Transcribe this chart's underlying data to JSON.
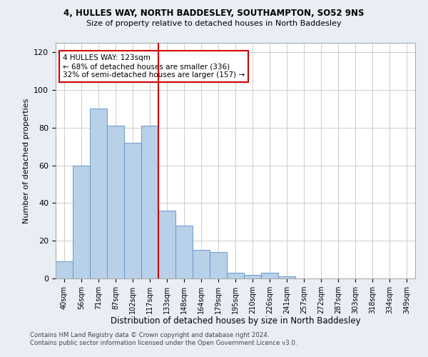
{
  "title1": "4, HULLES WAY, NORTH BADDESLEY, SOUTHAMPTON, SO52 9NS",
  "title2": "Size of property relative to detached houses in North Baddesley",
  "xlabel": "Distribution of detached houses by size in North Baddesley",
  "ylabel": "Number of detached properties",
  "categories": [
    "40sqm",
    "56sqm",
    "71sqm",
    "87sqm",
    "102sqm",
    "117sqm",
    "133sqm",
    "148sqm",
    "164sqm",
    "179sqm",
    "195sqm",
    "210sqm",
    "226sqm",
    "241sqm",
    "257sqm",
    "272sqm",
    "287sqm",
    "303sqm",
    "318sqm",
    "334sqm",
    "349sqm"
  ],
  "values": [
    9,
    60,
    90,
    81,
    72,
    81,
    36,
    28,
    15,
    14,
    3,
    2,
    3,
    1,
    0,
    0,
    0,
    0,
    0,
    0,
    0
  ],
  "bar_color": "#b8d0e8",
  "bar_edge_color": "#6699cc",
  "vline_x": 5.5,
  "vline_color": "#cc0000",
  "annotation_text": "4 HULLES WAY: 123sqm\n← 68% of detached houses are smaller (336)\n32% of semi-detached houses are larger (157) →",
  "annotation_box_color": "#ffffff",
  "annotation_box_edge": "#cc0000",
  "ylim": [
    0,
    125
  ],
  "yticks": [
    0,
    20,
    40,
    60,
    80,
    100,
    120
  ],
  "footer1": "Contains HM Land Registry data © Crown copyright and database right 2024.",
  "footer2": "Contains public sector information licensed under the Open Government Licence v3.0.",
  "bg_color": "#e8eef4",
  "plot_bg_color": "#ffffff"
}
